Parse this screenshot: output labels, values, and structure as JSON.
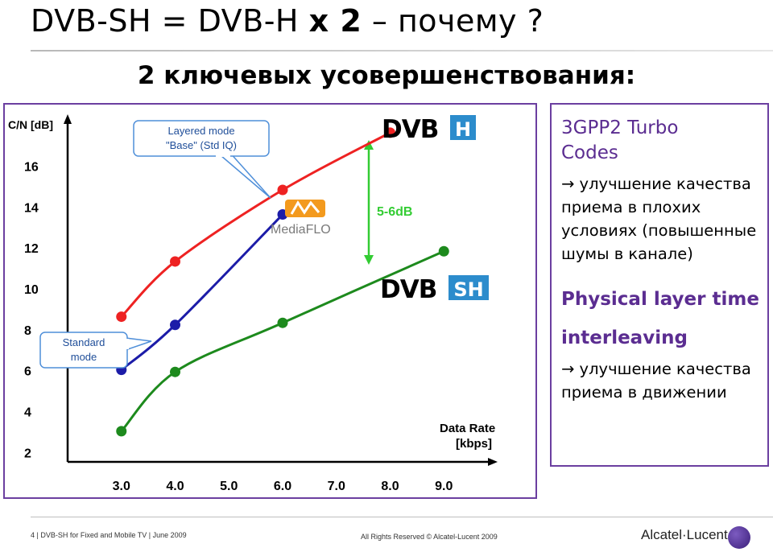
{
  "slide": {
    "title_part1": "DVB-SH = DVB-H ",
    "title_bold": "x 2",
    "title_part2": " – почему ?",
    "subtitle": "2 ключевых усовершенствования:"
  },
  "chart_data": {
    "type": "line",
    "ylabel": "C/N [dB]",
    "xlabel_line1": "Data Rate",
    "xlabel_line2": "[kbps]",
    "x_ticks": [
      "3.0",
      "4.0",
      "5.0",
      "6.0",
      "7.0",
      "8.0",
      "9.0"
    ],
    "y_ticks": [
      "2",
      "4",
      "6",
      "8",
      "10",
      "12",
      "14",
      "16"
    ],
    "xlim": [
      2.0,
      10.0
    ],
    "ylim": [
      1.5,
      18.5
    ],
    "series": [
      {
        "color": "#ee2222",
        "points": [
          [
            3.0,
            8.6
          ],
          [
            4.0,
            11.3
          ],
          [
            6.0,
            14.8
          ],
          [
            8.0,
            17.6
          ]
        ]
      },
      {
        "color": "#1c1ca8",
        "points": [
          [
            3.0,
            6.0
          ],
          [
            4.0,
            8.2
          ],
          [
            6.0,
            13.6
          ]
        ]
      },
      {
        "color": "#1d8a1d",
        "points": [
          [
            3.0,
            3.0
          ],
          [
            4.0,
            5.9
          ],
          [
            6.0,
            8.3
          ],
          [
            9.0,
            11.8
          ]
        ]
      }
    ],
    "annotations": {
      "layered_line1": "Layered mode",
      "layered_line2": "\"Base\" (Std IQ)",
      "standard_line1": "Standard",
      "standard_line2": "mode",
      "gap_label": "5-6dB",
      "mediaflo": "MediaFLO",
      "dvbh_left": "DVB",
      "dvbh_right": "H",
      "dvbsh_left": "DVB",
      "dvbsh_right": "SH"
    },
    "colors": {
      "gap_arrow": "#33cc33",
      "callout_border": "#4f8fd9",
      "callout_text": "#1f4e99"
    }
  },
  "panel": {
    "h1_line1": "3GPP2 Turbo",
    "h1_line2": "Codes",
    "t1": "→ улучшение качества приема в плохих условиях (повышенные шумы в канале)",
    "h2_line1": "Physical layer time",
    "h2_line2": "interleaving",
    "t2": "→ улучшение качества приема в движении"
  },
  "footer": {
    "left": "4 | DVB-SH for Fixed and Mobile TV | June 2009",
    "middle": "All Rights Reserved © Alcatel-Lucent 2009",
    "logo": "Alcatel·Lucent"
  }
}
